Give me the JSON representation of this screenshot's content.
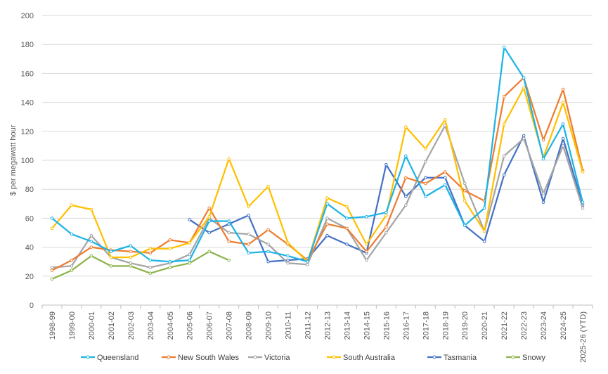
{
  "chart_data": {
    "type": "line",
    "title": "",
    "xlabel": "",
    "ylabel": "$ per megawatt hour",
    "ylim": [
      0,
      200
    ],
    "yticks": [
      0,
      20,
      40,
      60,
      80,
      100,
      120,
      140,
      160,
      180,
      200
    ],
    "grid": "horizontal",
    "legend_position": "bottom",
    "categories": [
      "1998-99",
      "1999-00",
      "2000-01",
      "2001-02",
      "2002-03",
      "2003-04",
      "2004-05",
      "2005-06",
      "2006-07",
      "2007-08",
      "2008-09",
      "2009-10",
      "2010-11",
      "2011-12",
      "2012-13",
      "2013-14",
      "2014-15",
      "2015-16",
      "2016-17",
      "2017-18",
      "2018-19",
      "2019-20",
      "2020-21",
      "2021-22",
      "2022-23",
      "2023-24",
      "2024-25",
      "2025-26 (YTD)"
    ],
    "series": [
      {
        "name": "Queensland",
        "color": "#1EB4E6",
        "values": [
          60,
          49,
          44,
          37,
          41,
          31,
          30,
          31,
          58,
          58,
          36,
          37,
          34,
          30,
          70,
          60,
          61,
          64,
          103,
          75,
          83,
          55,
          67,
          178,
          157,
          101,
          125,
          71
        ]
      },
      {
        "name": "New South Wales",
        "color": "#ED7D31",
        "values": [
          24,
          31,
          40,
          38,
          37,
          36,
          45,
          43,
          67,
          44,
          42,
          52,
          42,
          31,
          56,
          53,
          37,
          54,
          88,
          84,
          92,
          79,
          72,
          144,
          157,
          114,
          149,
          93
        ]
      },
      {
        "name": "Victoria",
        "color": "#A5A5A5",
        "values": [
          26,
          27,
          48,
          33,
          29,
          26,
          29,
          35,
          60,
          50,
          49,
          42,
          29,
          28,
          60,
          53,
          31,
          50,
          69,
          99,
          124,
          84,
          51,
          103,
          115,
          77,
          110,
          67
        ]
      },
      {
        "name": "South Australia",
        "color": "#FFC000",
        "values": [
          53,
          69,
          66,
          33,
          33,
          39,
          39,
          43,
          61,
          101,
          68,
          82,
          43,
          30,
          74,
          68,
          42,
          62,
          123,
          108,
          128,
          72,
          51,
          125,
          150,
          102,
          140,
          92
        ]
      },
      {
        "name": "Tasmania",
        "color": "#4472C4",
        "values": [
          null,
          null,
          null,
          null,
          null,
          null,
          null,
          59,
          50,
          56,
          62,
          30,
          31,
          32,
          48,
          42,
          36,
          97,
          75,
          88,
          88,
          55,
          44,
          90,
          117,
          71,
          115,
          69
        ]
      },
      {
        "name": "Snowy",
        "color": "#8DB34A",
        "values": [
          18,
          24,
          34,
          27,
          27,
          22,
          26,
          29,
          37,
          31,
          null,
          null,
          null,
          null,
          null,
          null,
          null,
          null,
          null,
          null,
          null,
          null,
          null,
          null,
          null,
          null,
          null,
          null
        ]
      }
    ]
  }
}
